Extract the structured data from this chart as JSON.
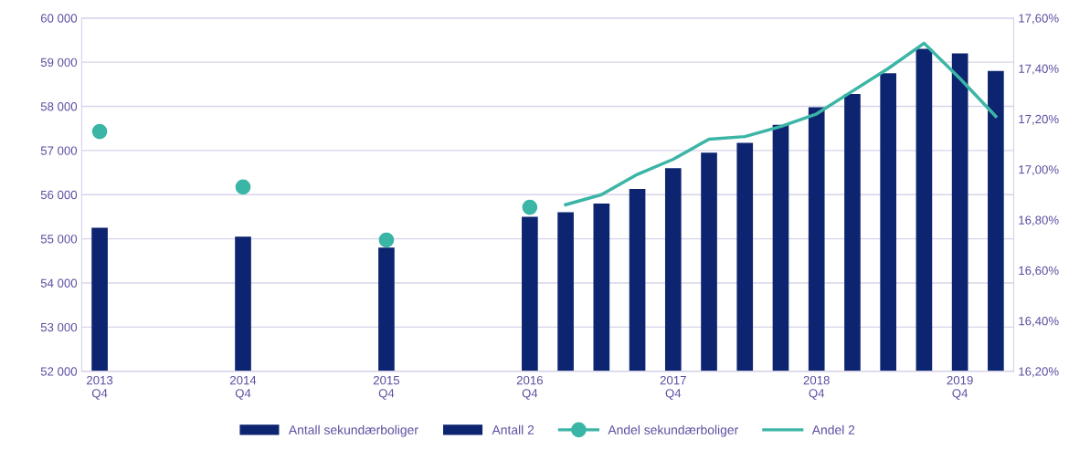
{
  "chart_data": {
    "type": "bar",
    "categories": [
      "2013\nQ4",
      null,
      null,
      null,
      "2014\nQ4",
      null,
      null,
      null,
      "2015\nQ4",
      null,
      null,
      null,
      "2016\nQ4",
      null,
      null,
      null,
      "2017\nQ4",
      null,
      null,
      null,
      "2018\nQ4",
      null,
      null,
      null,
      "2019\nQ4",
      null
    ],
    "series": [
      {
        "name": "Antall sekundærboliger",
        "color": "#0d2470",
        "values": [
          55250,
          null,
          null,
          null,
          55050,
          null,
          null,
          null,
          54800,
          null,
          null,
          null,
          55500,
          null,
          null,
          null,
          null,
          null,
          null,
          null,
          null,
          null,
          null,
          null,
          null,
          null
        ]
      },
      {
        "name": "Antall 2",
        "color": "#0d2470",
        "values": [
          null,
          null,
          null,
          null,
          null,
          null,
          null,
          null,
          null,
          null,
          null,
          null,
          null,
          55600,
          55800,
          56130,
          56600,
          56950,
          57170,
          57580,
          57980,
          58280,
          58750,
          59300,
          59200,
          58800
        ]
      },
      {
        "name": "Andel sekundærboliger",
        "type": "line",
        "axis": "y2",
        "marker": "circle",
        "color": "#3ab5a6",
        "values": [
          17.15,
          null,
          null,
          null,
          16.93,
          null,
          null,
          null,
          16.72,
          null,
          null,
          null,
          16.85,
          null,
          null,
          null,
          null,
          null,
          null,
          null,
          null,
          null,
          null,
          null,
          null,
          null
        ]
      },
      {
        "name": "Andel 2",
        "type": "line",
        "axis": "y2",
        "marker": "none",
        "color": "#3ab5a6",
        "values": [
          null,
          null,
          null,
          null,
          null,
          null,
          null,
          null,
          null,
          null,
          null,
          null,
          null,
          16.86,
          16.9,
          16.98,
          17.04,
          17.12,
          17.13,
          17.17,
          17.22,
          17.31,
          17.4,
          17.5,
          17.36,
          17.21
        ]
      }
    ],
    "ylim": [
      52000,
      60000
    ],
    "yticks": [
      {
        "value": 52000,
        "label": "52 000"
      },
      {
        "value": 53000,
        "label": "53 000"
      },
      {
        "value": 54000,
        "label": "54 000"
      },
      {
        "value": 55000,
        "label": "55 000"
      },
      {
        "value": 56000,
        "label": "56 000"
      },
      {
        "value": 57000,
        "label": "57 000"
      },
      {
        "value": 58000,
        "label": "58 000"
      },
      {
        "value": 59000,
        "label": "59 000"
      },
      {
        "value": 60000,
        "label": "60 000"
      }
    ],
    "y2lim": [
      16.2,
      17.6
    ],
    "y2ticks": [
      {
        "value": 16.2,
        "label": "16,20%"
      },
      {
        "value": 16.4,
        "label": "16,40%"
      },
      {
        "value": 16.6,
        "label": "16,60%"
      },
      {
        "value": 16.8,
        "label": "16,80%"
      },
      {
        "value": 17.0,
        "label": "17,00%"
      },
      {
        "value": 17.2,
        "label": "17,20%"
      },
      {
        "value": 17.4,
        "label": "17,40%"
      },
      {
        "value": 17.6,
        "label": "17,60%"
      }
    ],
    "grid": "y",
    "legend": "bottom"
  }
}
